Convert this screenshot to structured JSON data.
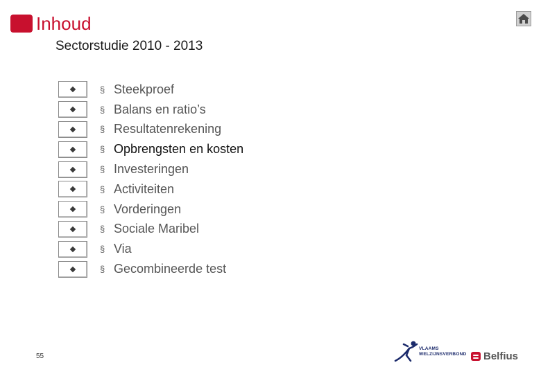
{
  "header": {
    "title": "Inhoud",
    "subtitle": "Sectorstudie 2010 - 2013",
    "accent_color": "#c8102e",
    "home_icon": "home-icon"
  },
  "toc": {
    "bullet": "§",
    "active_index": 3,
    "items": [
      {
        "label": "Steekproef"
      },
      {
        "label": "Balans en ratio’s"
      },
      {
        "label": "Resultatenrekening"
      },
      {
        "label": "Opbrengsten en kosten"
      },
      {
        "label": "Investeringen"
      },
      {
        "label": "Activiteiten"
      },
      {
        "label": "Vorderingen"
      },
      {
        "label": "Sociale Maribel"
      },
      {
        "label": "Via"
      },
      {
        "label": "Gecombineerde test"
      }
    ]
  },
  "footer": {
    "page_number": "55",
    "vwv_logo_line1": "VLAAMS",
    "vwv_logo_line2": "WELZIJNSVERBOND",
    "belfius_logo": "Belfius"
  }
}
